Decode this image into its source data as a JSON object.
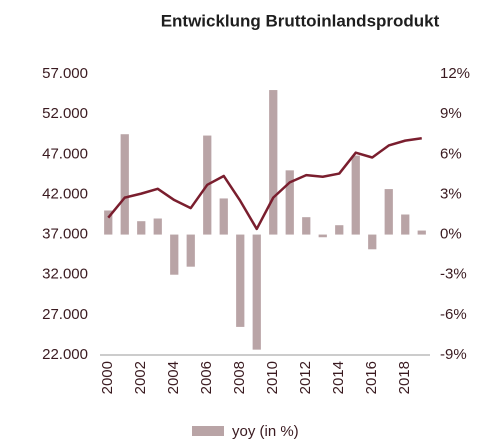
{
  "chart_data": {
    "type": "bar_line",
    "title": "Entwicklung Bruttoinlandsprodukt",
    "categories": [
      "2000",
      null,
      "2002",
      null,
      "2004",
      null,
      "2006",
      null,
      "2008",
      null,
      "2010",
      null,
      "2012",
      null,
      "2014",
      null,
      "2016",
      null,
      "2018",
      null
    ],
    "series": [
      {
        "color": "#7a1e2e",
        "type": "line",
        "axis": "y",
        "values": [
          39100,
          41600,
          42100,
          42700,
          41300,
          40300,
          43200,
          44300,
          41200,
          37700,
          41600,
          43500,
          44400,
          44200,
          44600,
          47200,
          46600,
          48100,
          48700,
          49000
        ]
      },
      {
        "name": "yoy (in %)",
        "color": "#b9a4a6",
        "type": "bar",
        "axis": "y2",
        "values": [
          1.8,
          7.5,
          1.0,
          1.2,
          -3.0,
          -2.4,
          7.4,
          2.7,
          -6.9,
          -8.6,
          10.8,
          4.8,
          1.3,
          -0.2,
          0.7,
          5.9,
          -1.1,
          3.4,
          1.5,
          0.3
        ]
      }
    ],
    "ylim": [
      22000,
      57000
    ],
    "yticks": [
      {
        "value": 22000,
        "label": "22.000"
      },
      {
        "value": 27000,
        "label": "27.000"
      },
      {
        "value": 32000,
        "label": "32.000"
      },
      {
        "value": 37000,
        "label": "37.000"
      },
      {
        "value": 42000,
        "label": "42.000"
      },
      {
        "value": 47000,
        "label": "47.000"
      },
      {
        "value": 52000,
        "label": "52.000"
      },
      {
        "value": 57000,
        "label": "57.000"
      }
    ],
    "y2lim": [
      -9,
      12
    ],
    "y2ticks": [
      {
        "value": -9,
        "label": "-9%"
      },
      {
        "value": -6,
        "label": "-6%"
      },
      {
        "value": -3,
        "label": "-3%"
      },
      {
        "value": 0,
        "label": "0%"
      },
      {
        "value": 3,
        "label": "3%"
      },
      {
        "value": 6,
        "label": "6%"
      },
      {
        "value": 9,
        "label": "9%"
      },
      {
        "value": 12,
        "label": "12%"
      }
    ],
    "legend": "bottom"
  }
}
